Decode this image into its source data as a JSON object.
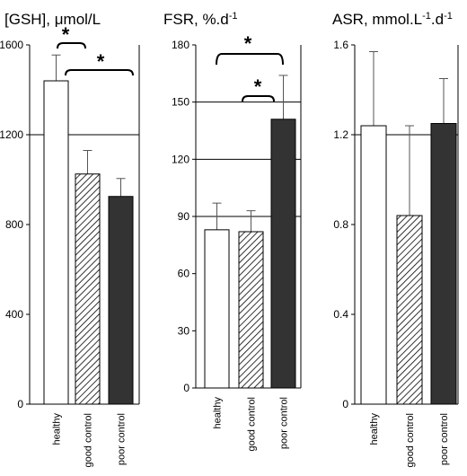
{
  "chart_data": [
    {
      "type": "bar",
      "title": "[GSH], μmol/L",
      "categories": [
        "healthy",
        "good control",
        "poor control"
      ],
      "values": [
        1440,
        1025,
        925
      ],
      "error_bars": [
        115,
        105,
        80
      ],
      "ylim": [
        0,
        1600
      ],
      "yticks": [
        0,
        400,
        800,
        1200,
        1600
      ],
      "ytick_labels": [
        "0",
        "400",
        "800",
        "1200",
        "1600"
      ],
      "gridlines": [
        1200
      ],
      "significance": [
        {
          "between": [
            "healthy",
            "good control"
          ],
          "label": "*"
        },
        {
          "between": [
            "healthy",
            "poor control"
          ],
          "label": "*"
        }
      ]
    },
    {
      "type": "bar",
      "title": "FSR, %.d-1",
      "categories": [
        "healthy",
        "good control",
        "poor control"
      ],
      "values": [
        83,
        82,
        141
      ],
      "error_bars": [
        14,
        11,
        23
      ],
      "ylim": [
        0,
        180
      ],
      "yticks": [
        0,
        30,
        60,
        90,
        120,
        150,
        180
      ],
      "ytick_labels": [
        "0",
        "30",
        "60",
        "90",
        "120",
        "150",
        "180"
      ],
      "gridlines": [
        90,
        120,
        150
      ],
      "significance": [
        {
          "between": [
            "good control",
            "poor control"
          ],
          "label": "*"
        },
        {
          "between": [
            "healthy",
            "poor control"
          ],
          "label": "*"
        }
      ]
    },
    {
      "type": "bar",
      "title": "ASR, mmol.L-1.d-1",
      "categories": [
        "healthy",
        "good control",
        "poor control"
      ],
      "values": [
        1.24,
        0.84,
        1.25
      ],
      "error_bars": [
        0.33,
        0.4,
        0.2
      ],
      "ylim": [
        0,
        1.6
      ],
      "yticks": [
        0,
        0.4,
        0.8,
        1.2,
        1.6
      ],
      "ytick_labels": [
        "0",
        "0.4",
        "0.8",
        "1.2",
        "1.6"
      ],
      "gridlines": [
        1.2
      ],
      "significance": []
    }
  ],
  "bar_styles": {
    "healthy": {
      "fill": "#ffffff",
      "stroke": "#000000",
      "pattern": "none"
    },
    "good control": {
      "fill": "#ffffff",
      "stroke": "#000000",
      "pattern": "diagonal-hatch"
    },
    "poor control": {
      "fill": "#333333",
      "stroke": "#000000",
      "pattern": "none"
    }
  }
}
